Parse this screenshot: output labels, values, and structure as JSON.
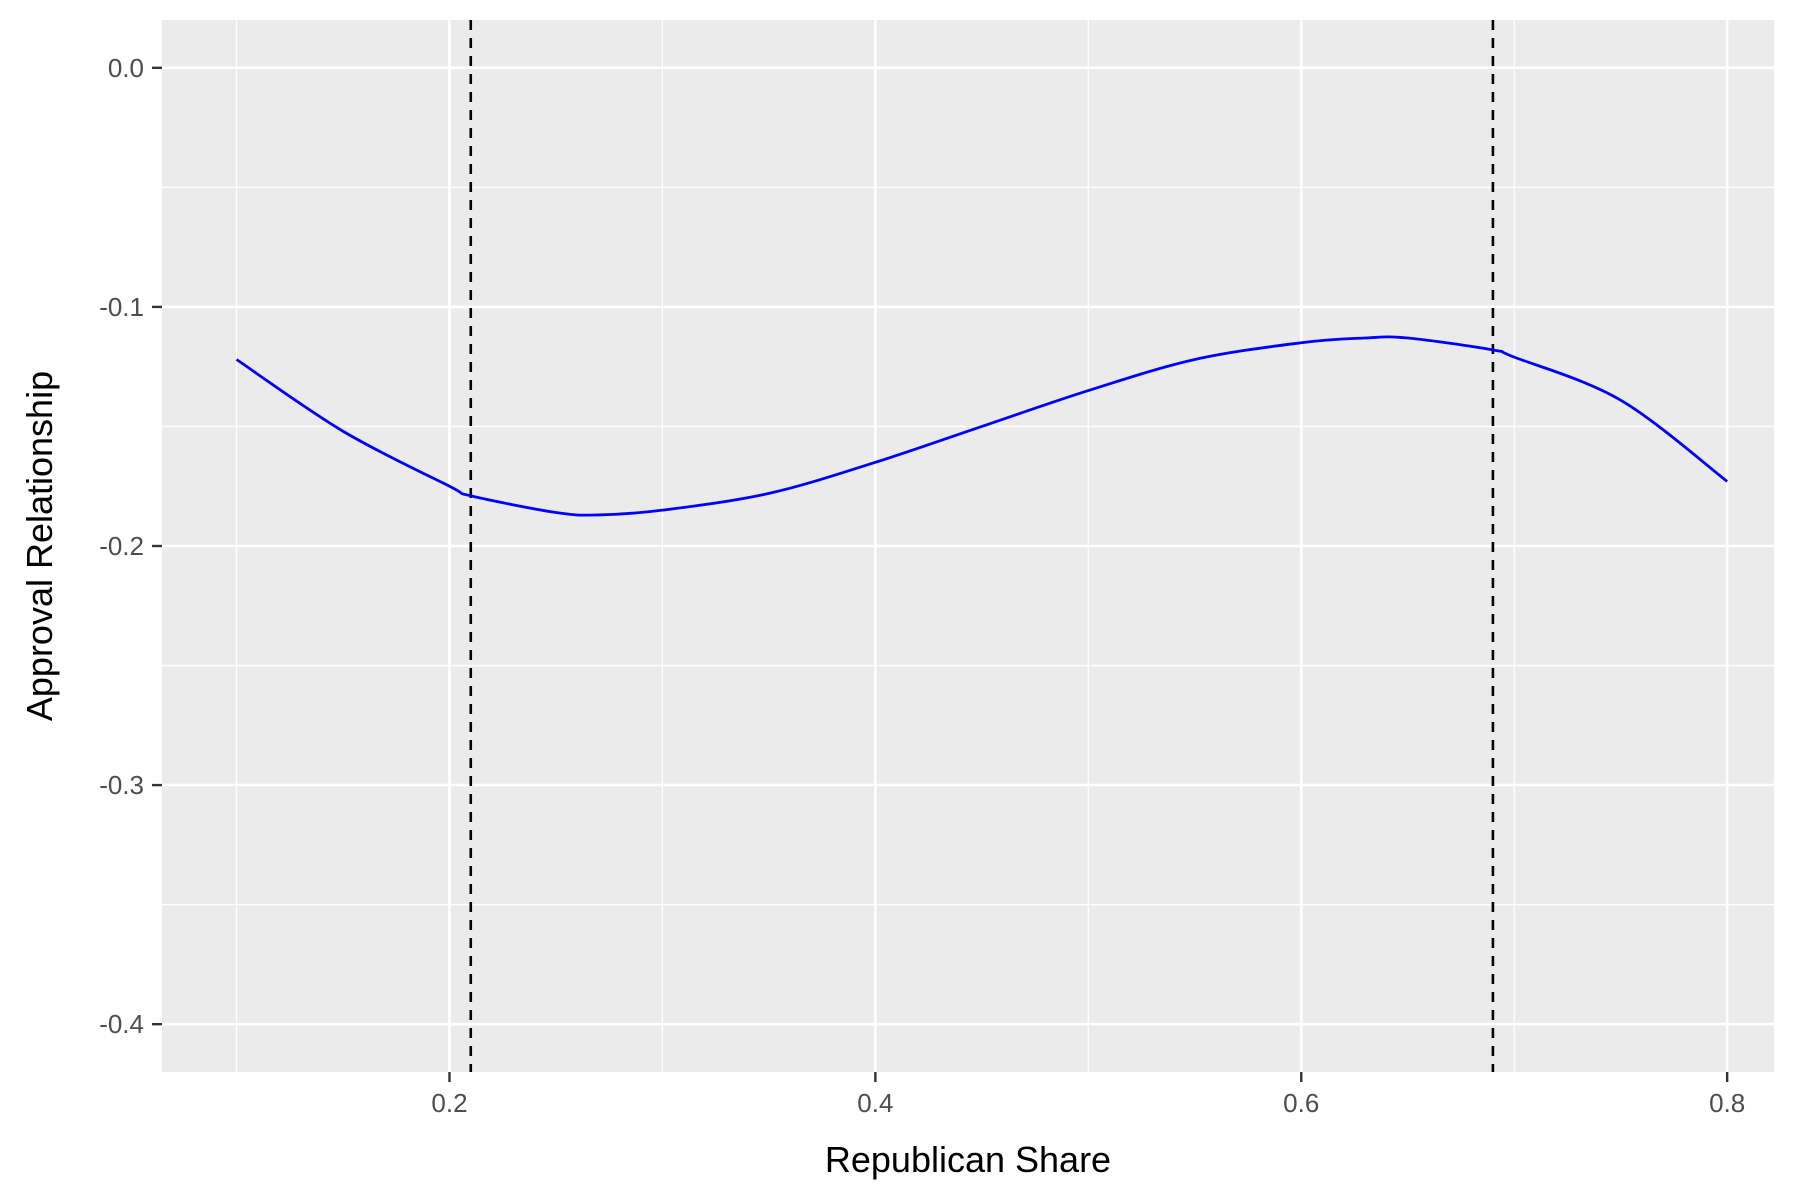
{
  "chart_data": {
    "type": "line",
    "title": "",
    "xlabel": "Republican Share",
    "ylabel": "Approval Relationship",
    "xlim": [
      0.065,
      0.822
    ],
    "ylim": [
      -0.42,
      0.02
    ],
    "x_ticks": [
      0.2,
      0.4,
      0.6,
      0.8
    ],
    "x_tick_labels": [
      "0.2",
      "0.4",
      "0.6",
      "0.8"
    ],
    "y_ticks": [
      0.0,
      -0.1,
      -0.2,
      -0.3,
      -0.4
    ],
    "y_tick_labels": [
      "0.0",
      "-0.1",
      "-0.2",
      "-0.3",
      "-0.4"
    ],
    "grid": true,
    "background": "#ebebeb",
    "series": [
      {
        "color": "#0000ff",
        "x": [
          0.1,
          0.15,
          0.2,
          0.21,
          0.25,
          0.27,
          0.3,
          0.35,
          0.4,
          0.45,
          0.5,
          0.55,
          0.6,
          0.63,
          0.65,
          0.69,
          0.7,
          0.75,
          0.8
        ],
        "y": [
          -0.122,
          -0.152,
          -0.175,
          -0.179,
          -0.186,
          -0.187,
          -0.185,
          -0.178,
          -0.165,
          -0.15,
          -0.135,
          -0.122,
          -0.115,
          -0.113,
          -0.113,
          -0.118,
          -0.121,
          -0.139,
          -0.173
        ]
      }
    ],
    "vlines": [
      {
        "x": 0.21,
        "color": "#000000",
        "style": "dashed"
      },
      {
        "x": 0.69,
        "color": "#000000",
        "style": "dashed"
      }
    ]
  }
}
